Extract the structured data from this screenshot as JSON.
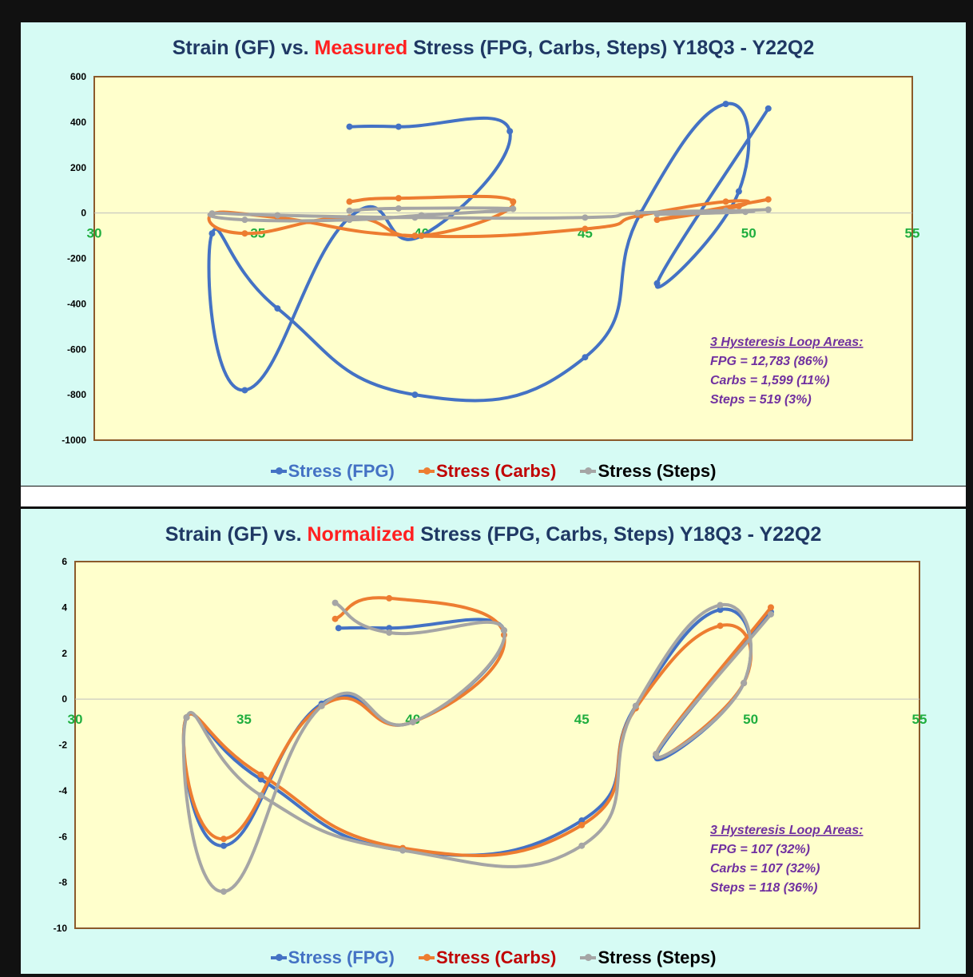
{
  "chart_data": [
    {
      "type": "line",
      "title_parts": [
        "Strain (GF) vs. ",
        "Measured",
        " Stress (FPG, Carbs, Steps)  Y18Q3 - Y22Q2"
      ],
      "xlabel": "",
      "ylabel": "",
      "xlim": [
        30,
        55
      ],
      "ylim": [
        -1000,
        600
      ],
      "xticks": [
        "30",
        "35",
        "40",
        "45",
        "50",
        "55"
      ],
      "yticks": [
        "600",
        "400",
        "200",
        "0",
        "-200",
        "-400",
        "-600",
        "-800",
        "-1000"
      ],
      "annotation": [
        "3 Hysteresis Loop Areas:",
        "FPG = 12,783 (86%)",
        "Carbs = 1,599 (11%)",
        "Steps = 519 (3%)"
      ],
      "legend_position": "bottom",
      "colors": {
        "FPG": "#4472c4",
        "Carbs": "#ed7d31",
        "Steps": "#a5a5a5",
        "plot_bg": "#ffffcc",
        "plot_border": "#8b5a2b",
        "xtick": "#1fae3e"
      },
      "series": [
        {
          "name": "Stress (FPG)",
          "color": "#4472c4",
          "points": [
            [
              37.8,
              380
            ],
            [
              39.3,
              380
            ],
            [
              42.7,
              360
            ],
            [
              40,
              -100
            ],
            [
              37.8,
              -20
            ],
            [
              34.6,
              -780
            ],
            [
              33.6,
              -90
            ],
            [
              35.6,
              -420
            ],
            [
              39.8,
              -800
            ],
            [
              45,
              -635
            ],
            [
              46.7,
              0
            ],
            [
              49.3,
              480
            ],
            [
              49.7,
              95
            ],
            [
              47.2,
              -310
            ],
            [
              50.6,
              460
            ]
          ]
        },
        {
          "name": "Stress (Carbs)",
          "color": "#ed7d31",
          "points": [
            [
              37.8,
              50
            ],
            [
              39.3,
              65
            ],
            [
              42.8,
              50
            ],
            [
              40,
              -100
            ],
            [
              37.8,
              -20
            ],
            [
              34.6,
              -90
            ],
            [
              33.6,
              -5
            ],
            [
              35.6,
              -20
            ],
            [
              39.8,
              -100
            ],
            [
              45,
              -70
            ],
            [
              46.7,
              -10
            ],
            [
              49.3,
              50
            ],
            [
              49.7,
              30
            ],
            [
              47.2,
              -30
            ],
            [
              50.6,
              60
            ]
          ]
        },
        {
          "name": "Stress (Steps)",
          "color": "#a5a5a5",
          "points": [
            [
              37.8,
              10
            ],
            [
              39.3,
              20
            ],
            [
              42.8,
              18
            ],
            [
              40,
              -10
            ],
            [
              37.8,
              -30
            ],
            [
              34.6,
              -30
            ],
            [
              33.6,
              -2
            ],
            [
              35.6,
              -10
            ],
            [
              39.8,
              -20
            ],
            [
              45,
              -20
            ],
            [
              46.6,
              0
            ],
            [
              49.3,
              10
            ],
            [
              49.9,
              5
            ],
            [
              47.2,
              -5
            ],
            [
              50.6,
              15
            ]
          ]
        }
      ]
    },
    {
      "type": "line",
      "title_parts": [
        "Strain (GF) vs. ",
        "Normalized",
        " Stress (FPG, Carbs, Steps)  Y18Q3 - Y22Q2"
      ],
      "xlabel": "",
      "ylabel": "",
      "xlim": [
        30,
        55
      ],
      "ylim": [
        -10,
        6
      ],
      "xticks": [
        "30",
        "35",
        "40",
        "45",
        "50",
        "55"
      ],
      "yticks": [
        "6",
        "4",
        "2",
        "0",
        "-2",
        "-4",
        "-6",
        "-8",
        "-10"
      ],
      "annotation": [
        "3 Hysteresis Loop Areas:",
        "FPG = 107 (32%)",
        "Carbs = 107 (32%)",
        "Steps = 118 (36%)"
      ],
      "legend_position": "bottom",
      "colors": {
        "FPG": "#4472c4",
        "Carbs": "#ed7d31",
        "Steps": "#a5a5a5",
        "plot_bg": "#ffffcc",
        "plot_border": "#8b5a2b",
        "xtick": "#1fae3e"
      },
      "series": [
        {
          "name": "Stress (FPG)",
          "color": "#4472c4",
          "points": [
            [
              37.8,
              3.1
            ],
            [
              39.3,
              3.1
            ],
            [
              42.7,
              3.0
            ],
            [
              40,
              -1.0
            ],
            [
              37.3,
              -0.2
            ],
            [
              34.4,
              -6.4
            ],
            [
              33.3,
              -0.8
            ],
            [
              35.5,
              -3.5
            ],
            [
              39.7,
              -6.6
            ],
            [
              45,
              -5.3
            ],
            [
              46.6,
              -0.3
            ],
            [
              49.1,
              3.9
            ],
            [
              49.8,
              0.7
            ],
            [
              47.2,
              -2.5
            ],
            [
              50.6,
              3.8
            ]
          ]
        },
        {
          "name": "Stress (Carbs)",
          "color": "#ed7d31",
          "points": [
            [
              37.7,
              3.5
            ],
            [
              39.3,
              4.4
            ],
            [
              42.7,
              2.8
            ],
            [
              40,
              -1.0
            ],
            [
              37.3,
              -0.3
            ],
            [
              34.4,
              -6.1
            ],
            [
              33.3,
              -0.8
            ],
            [
              35.5,
              -3.3
            ],
            [
              39.7,
              -6.5
            ],
            [
              45,
              -5.5
            ],
            [
              46.6,
              -0.4
            ],
            [
              49.1,
              3.2
            ],
            [
              49.8,
              0.7
            ],
            [
              47.2,
              -2.4
            ],
            [
              50.6,
              4.0
            ]
          ]
        },
        {
          "name": "Stress (Steps)",
          "color": "#a5a5a5",
          "points": [
            [
              37.7,
              4.2
            ],
            [
              39.3,
              2.9
            ],
            [
              42.7,
              3.0
            ],
            [
              40,
              -1.0
            ],
            [
              37.3,
              -0.3
            ],
            [
              34.4,
              -8.4
            ],
            [
              33.3,
              -0.8
            ],
            [
              35.5,
              -4.2
            ],
            [
              39.7,
              -6.6
            ],
            [
              45,
              -6.4
            ],
            [
              46.6,
              -0.3
            ],
            [
              49.1,
              4.1
            ],
            [
              49.8,
              0.7
            ],
            [
              47.2,
              -2.4
            ],
            [
              50.6,
              3.7
            ]
          ]
        }
      ]
    }
  ]
}
